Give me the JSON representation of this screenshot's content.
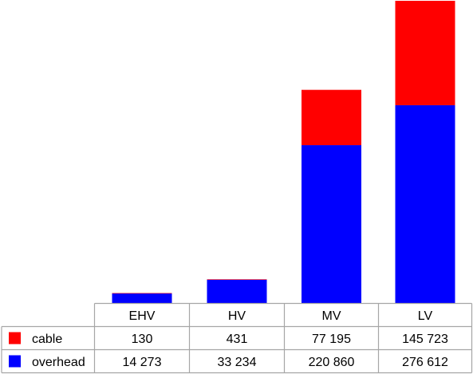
{
  "chart_data": {
    "type": "bar",
    "stacked": true,
    "categories": [
      "EHV",
      "HV",
      "MV",
      "LV"
    ],
    "series": [
      {
        "key": "overhead",
        "name": "overhead",
        "color": "#0000ff",
        "values": [
          14273,
          33234,
          220860,
          276612
        ],
        "labels": [
          "14 273",
          "33 234",
          "220 860",
          "276 612"
        ]
      },
      {
        "key": "cable",
        "name": "cable",
        "color": "#ff0000",
        "values": [
          130,
          431,
          77195,
          145723
        ],
        "labels": [
          "130",
          "431",
          "77 195",
          "145 723"
        ]
      }
    ],
    "table_row_order": [
      "cable",
      "overhead"
    ],
    "grid": false,
    "legend": "data-table",
    "ylim": [
      0,
      422335
    ]
  }
}
